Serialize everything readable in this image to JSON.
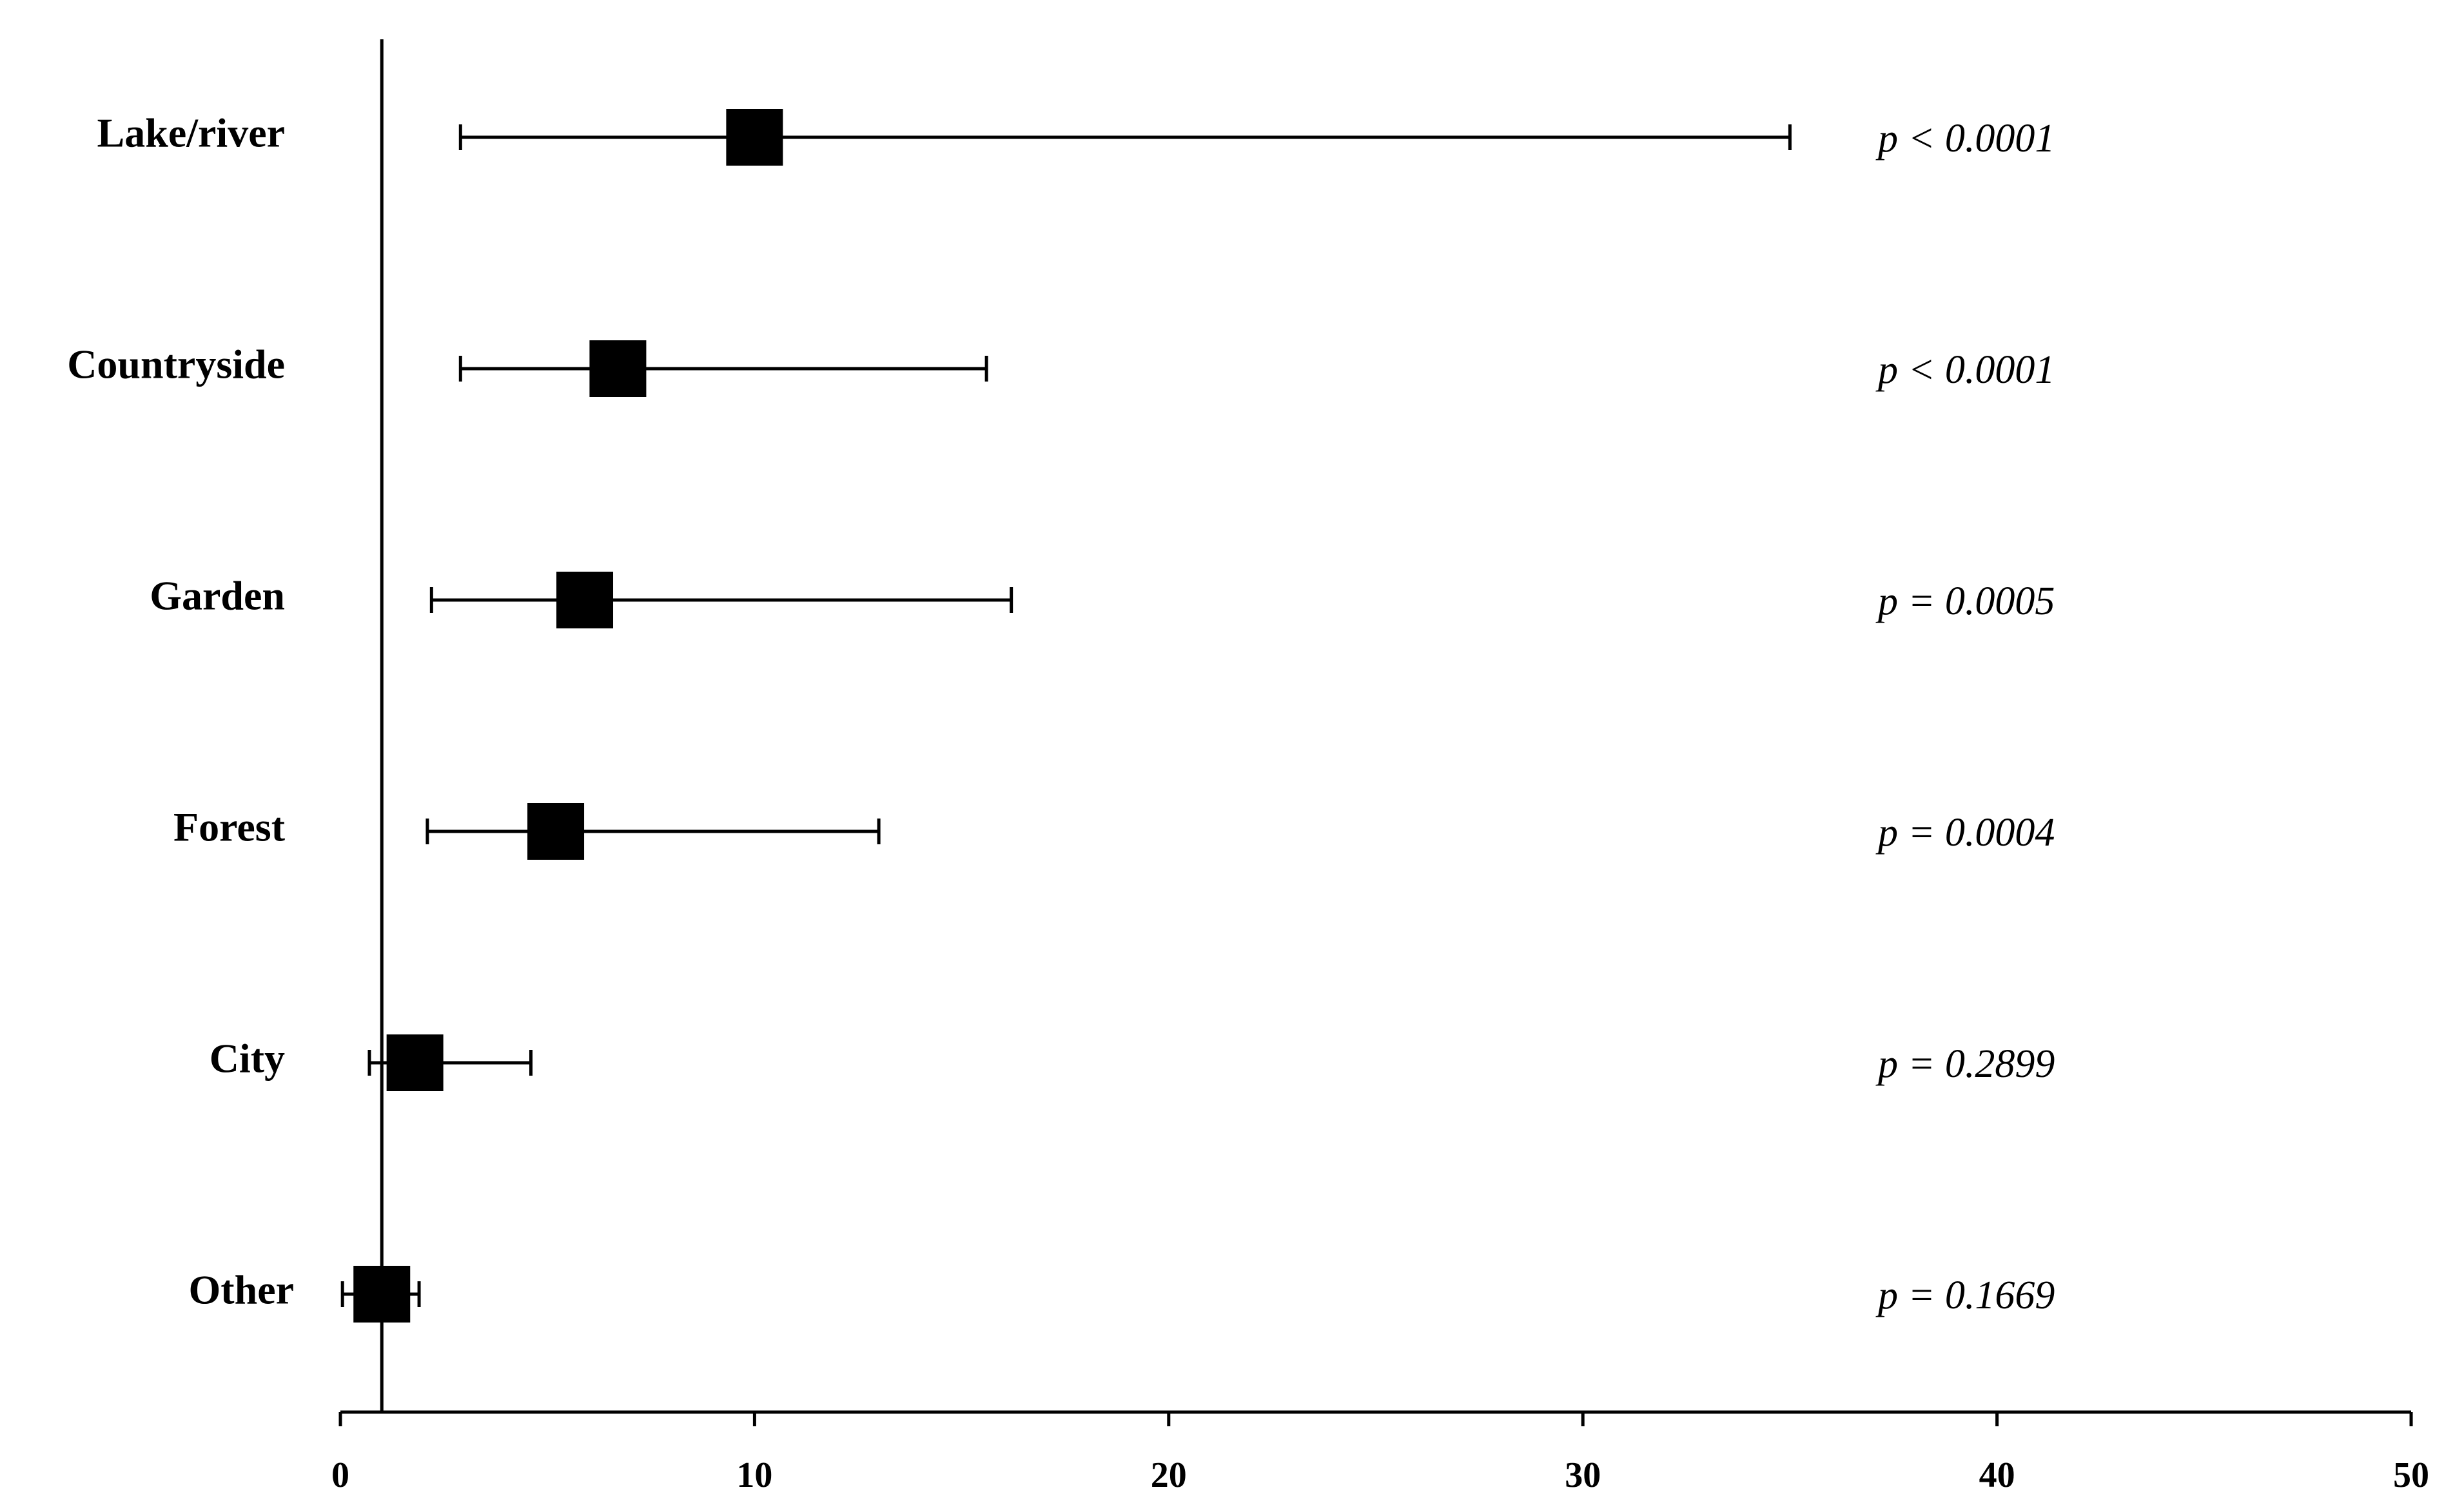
{
  "chart_data": {
    "type": "forest",
    "categories": [
      "Lake/river",
      "Countryside",
      "Garden",
      "Forest",
      "City",
      "Other"
    ],
    "values": [
      10.0,
      6.7,
      5.9,
      5.2,
      1.8,
      1.0
    ],
    "lower": [
      2.9,
      2.9,
      2.2,
      2.1,
      0.7,
      0.05
    ],
    "upper": [
      35.0,
      15.6,
      16.2,
      13.0,
      4.6,
      1.9
    ],
    "p_labels": [
      "p < 0.0001",
      "p < 0.0001",
      "p = 0.0005",
      "p = 0.0004",
      "p = 0.2899",
      "p = 0.1669"
    ],
    "reference_line": 1,
    "color": "#000000",
    "xlim": [
      0,
      50
    ],
    "xticks": [
      0,
      10,
      20,
      30,
      40,
      50
    ]
  }
}
